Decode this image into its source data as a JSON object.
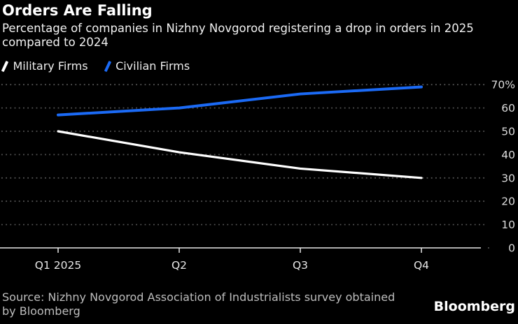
{
  "chart_data": {
    "type": "line",
    "title": "Orders Are Falling",
    "subtitle": "Percentage of companies in Nizhny Novgorod registering a drop in orders in 2025 compared to 2024",
    "subtitle_lines": [
      "Percentage of companies in Nizhny Novgorod registering a drop in orders in 2025",
      "compared to 2024"
    ],
    "categories": [
      "Q1 2025",
      "Q2",
      "Q3",
      "Q4"
    ],
    "series": [
      {
        "name": "Military Firms",
        "color": "#ffffff",
        "values": [
          50,
          41,
          34,
          30
        ]
      },
      {
        "name": "Civilian Firms",
        "color": "#1b6af5",
        "values": [
          57,
          60,
          66,
          69
        ]
      }
    ],
    "xlabel": "",
    "ylabel": "%",
    "ylim": [
      0,
      70
    ],
    "yticks": [
      0,
      10,
      20,
      30,
      40,
      50,
      60,
      70
    ],
    "ytick_labels": [
      "0",
      "10",
      "20",
      "30",
      "40",
      "50",
      "60",
      "70%"
    ],
    "grid": "horizontal dotted",
    "legend_position": "top-left",
    "y_axis_side": "right",
    "background_color": "#000000"
  },
  "footer": {
    "source_line1": "Source: Nizhny Novgorod Association of Industrialists survey obtained",
    "source_line2": "by Bloomberg",
    "logo": "Bloomberg"
  }
}
